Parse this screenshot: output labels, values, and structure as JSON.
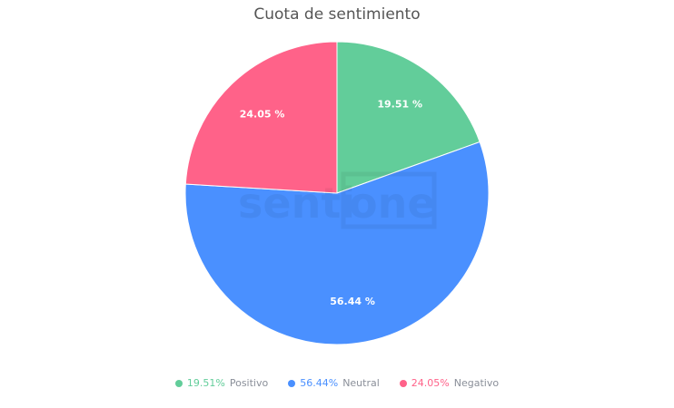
{
  "chart_data": {
    "type": "pie",
    "title": "Cuota de sentimiento",
    "slices": [
      {
        "name": "Positivo",
        "value": 19.51,
        "label": "19.51 %",
        "legend_value": "19.51%",
        "color": "#62cd9a"
      },
      {
        "name": "Neutral",
        "value": 56.44,
        "label": "56.44 %",
        "legend_value": "56.44%",
        "color": "#4a90ff"
      },
      {
        "name": "Negativo",
        "value": 24.05,
        "label": "24.05 %",
        "legend_value": "24.05%",
        "color": "#ff6289"
      }
    ],
    "start_angle": "top, clockwise",
    "legend_position": "bottom"
  },
  "watermark": "sentione"
}
